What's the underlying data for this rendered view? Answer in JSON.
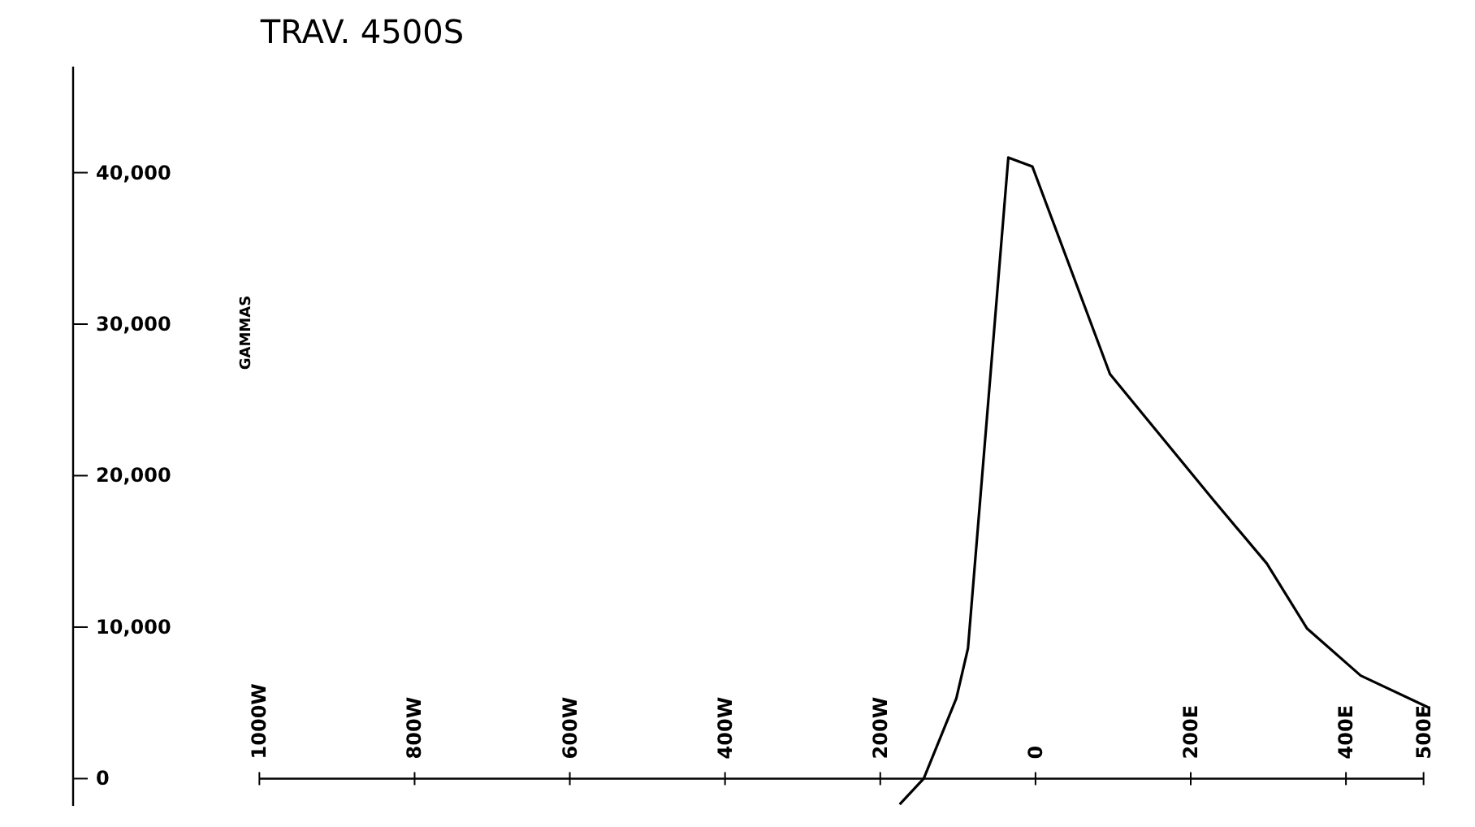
{
  "chart_data": {
    "type": "line",
    "title": "TRAV. 4500S",
    "ylabel": "GAMMAS",
    "x": [
      -175,
      -144,
      -102,
      -87,
      -35,
      -4,
      96,
      229,
      298,
      350,
      419,
      506
    ],
    "series": [
      {
        "color": "#000000",
        "values": [
          -1700,
          0,
          5300,
          8600,
          41000,
          40400,
          26700,
          18400,
          14200,
          9900,
          6800,
          4700
        ]
      }
    ],
    "xlim": [
      -1240,
      560
    ],
    "xticks": [
      {
        "value": -1000,
        "label": "1000W"
      },
      {
        "value": -800,
        "label": "800W"
      },
      {
        "value": -600,
        "label": "600W"
      },
      {
        "value": -400,
        "label": "400W"
      },
      {
        "value": -200,
        "label": "200W"
      },
      0,
      {
        "value": 200,
        "label": "200E"
      },
      {
        "value": 400,
        "label": "400E"
      },
      {
        "value": 500,
        "label": "500E"
      }
    ],
    "ylim": [
      -1800,
      47000
    ],
    "yticks": [
      0,
      {
        "value": 10000,
        "label": "10,000"
      },
      {
        "value": 20000,
        "label": "20,000"
      },
      {
        "value": 30000,
        "label": "30,000"
      },
      {
        "value": 40000,
        "label": "40,000"
      }
    ],
    "grid": false,
    "marker": "none",
    "line_style": "solid"
  }
}
